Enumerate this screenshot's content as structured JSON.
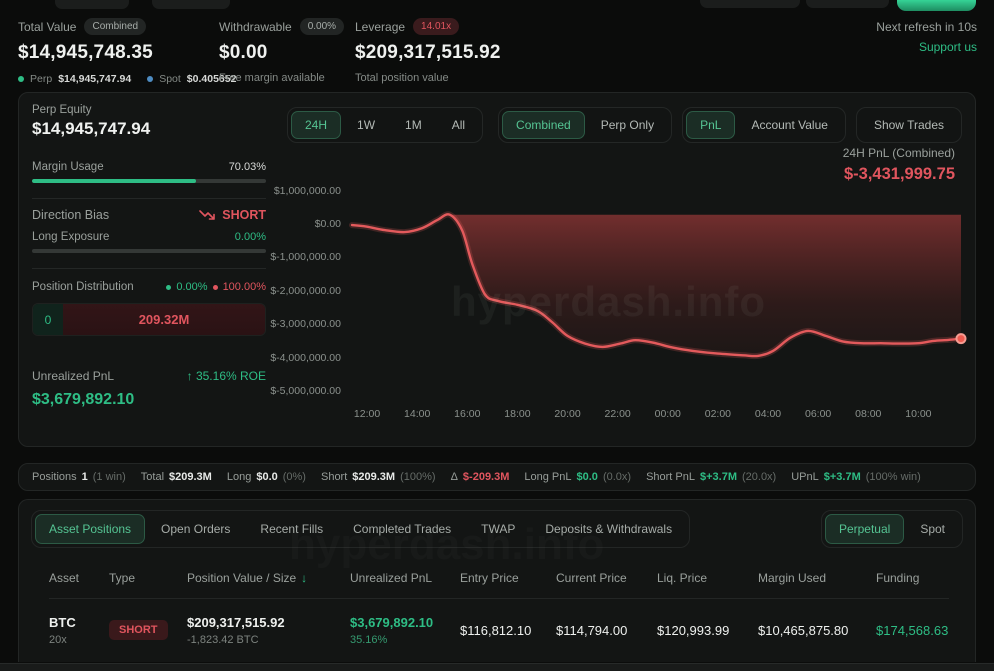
{
  "colors": {
    "background": "#0b0c0b",
    "panel": "#131514",
    "accent_green": "#2ebd85",
    "accent_red": "#e0555e",
    "line_red": "#e35a5c",
    "text_primary": "#eff1ef",
    "text_muted": "#9aa09c",
    "spot_dot_blue": "#4e8cc2"
  },
  "topbar": {
    "total_value": {
      "label": "Total Value",
      "badge": "Combined",
      "value": "$14,945,748.35",
      "perp_label": "Perp",
      "perp_value": "$14,945,747.94",
      "spot_label": "Spot",
      "spot_value": "$0.405652"
    },
    "withdrawable": {
      "label": "Withdrawable",
      "badge": "0.00%",
      "value": "$0.00",
      "sub": "Free margin available"
    },
    "leverage": {
      "label": "Leverage",
      "badge": "14.01x",
      "value": "$209,317,515.92",
      "sub": "Total position value"
    },
    "refresh": "Next refresh in 10s",
    "support": "Support us"
  },
  "stats": {
    "perp_equity_label": "Perp Equity",
    "perp_equity_value": "$14,945,747.94",
    "margin_usage_label": "Margin Usage",
    "margin_usage_value": "70.03%",
    "margin_usage_pct": 70.03,
    "direction_bias_label": "Direction Bias",
    "direction_bias_value": "SHORT",
    "long_exposure_label": "Long Exposure",
    "long_exposure_value": "0.00%",
    "long_exposure_pct": 0,
    "distribution": {
      "label": "Position Distribution",
      "long_pct": "0.00%",
      "short_pct": "100.00%",
      "long_amount": "0",
      "short_amount": "209.32M"
    },
    "unrealized": {
      "label": "Unrealized PnL",
      "roe": "↑ 35.16% ROE",
      "value": "$3,679,892.10"
    }
  },
  "chart_controls": {
    "time_filters": [
      "24H",
      "1W",
      "1M",
      "All"
    ],
    "active_time_filter": "24H",
    "view_toggle": [
      "Combined",
      "Perp Only"
    ],
    "active_view": "Combined",
    "metric_toggle": [
      "PnL",
      "Account Value"
    ],
    "active_metric": "PnL",
    "show_trades": "Show Trades",
    "pnl_label": "24H PnL (Combined)",
    "pnl_value": "$-3,431,999.75"
  },
  "watermark": "hyperdash.info",
  "chart_data": {
    "type": "area-line",
    "title": "24H PnL (Combined)",
    "current_value_label": "$-3,431,999.75",
    "current_value": -3431999.75,
    "ylim": [
      -5450000,
      1140000
    ],
    "y_ticks": [
      {
        "v": 1000000,
        "label": "$1,000,000.00"
      },
      {
        "v": 0,
        "label": "$0.00"
      },
      {
        "v": -1000000,
        "label": "$-1,000,000.00"
      },
      {
        "v": -2000000,
        "label": "$-2,000,000.00"
      },
      {
        "v": -3000000,
        "label": "$-3,000,000.00"
      },
      {
        "v": -4000000,
        "label": "$-4,000,000.00"
      },
      {
        "v": -5000000,
        "label": "$-5,000,000.00"
      }
    ],
    "xlim_hours": [
      11.12,
      36.06
    ],
    "x_ticks": [
      {
        "t": 12,
        "label": "12:00"
      },
      {
        "t": 14,
        "label": "14:00"
      },
      {
        "t": 16,
        "label": "16:00"
      },
      {
        "t": 18,
        "label": "18:00"
      },
      {
        "t": 20,
        "label": "20:00"
      },
      {
        "t": 22,
        "label": "22:00"
      },
      {
        "t": 24,
        "label": "00:00"
      },
      {
        "t": 26,
        "label": "02:00"
      },
      {
        "t": 28,
        "label": "04:00"
      },
      {
        "t": 30,
        "label": "06:00"
      },
      {
        "t": 32,
        "label": "08:00"
      },
      {
        "t": 34,
        "label": "10:00"
      }
    ],
    "points": [
      [
        11.4,
        -30000
      ],
      [
        12.0,
        -80000
      ],
      [
        12.7,
        -180000
      ],
      [
        13.5,
        -240000
      ],
      [
        14.2,
        -120000
      ],
      [
        14.8,
        120000
      ],
      [
        15.3,
        280000
      ],
      [
        15.8,
        -200000
      ],
      [
        16.2,
        -1200000
      ],
      [
        16.7,
        -2100000
      ],
      [
        17.2,
        -2300000
      ],
      [
        18.0,
        -2420000
      ],
      [
        18.8,
        -2600000
      ],
      [
        19.4,
        -2950000
      ],
      [
        20.0,
        -3350000
      ],
      [
        20.7,
        -3580000
      ],
      [
        21.4,
        -3680000
      ],
      [
        22.1,
        -3580000
      ],
      [
        22.7,
        -3480000
      ],
      [
        23.4,
        -3550000
      ],
      [
        24.2,
        -3700000
      ],
      [
        25.0,
        -3800000
      ],
      [
        26.0,
        -3880000
      ],
      [
        27.0,
        -3930000
      ],
      [
        27.6,
        -3950000
      ],
      [
        28.2,
        -3800000
      ],
      [
        28.9,
        -3400000
      ],
      [
        29.6,
        -3200000
      ],
      [
        30.3,
        -3350000
      ],
      [
        31.0,
        -3520000
      ],
      [
        31.7,
        -3570000
      ],
      [
        32.5,
        -3570000
      ],
      [
        33.3,
        -3580000
      ],
      [
        34.0,
        -3570000
      ],
      [
        34.6,
        -3500000
      ],
      [
        35.2,
        -3470000
      ],
      [
        35.7,
        -3430000
      ]
    ],
    "grid": false,
    "legend": "none",
    "marker": "end-dot"
  },
  "positions_summary": {
    "items": [
      {
        "label": "Positions",
        "value": "1",
        "extra": "(1 win)"
      },
      {
        "label": "Total",
        "value": "$209.3M",
        "extra": ""
      },
      {
        "label": "Long",
        "value": "$0.0",
        "extra": "(0%)"
      },
      {
        "label": "Short",
        "value": "$209.3M",
        "extra": "(100%)"
      },
      {
        "label": "Δ",
        "value": "$-209.3M",
        "extra": ""
      },
      {
        "label": "Long PnL",
        "value": "$0.0",
        "extra": "(0.0x)"
      },
      {
        "label": "Short PnL",
        "value": "$+3.7M",
        "extra": "(20.0x)"
      },
      {
        "label": "UPnL",
        "value": "$+3.7M",
        "extra": "(100% win)"
      }
    ]
  },
  "bottom": {
    "tabs": [
      "Asset Positions",
      "Open Orders",
      "Recent Fills",
      "Completed Trades",
      "TWAP",
      "Deposits & Withdrawals"
    ],
    "active_tab": "Asset Positions",
    "market_tabs": [
      "Perpetual",
      "Spot"
    ],
    "active_market": "Perpetual",
    "table": {
      "columns": [
        "Asset",
        "Type",
        "Position Value / Size",
        "Unrealized PnL",
        "Entry Price",
        "Current Price",
        "Liq. Price",
        "Margin Used",
        "Funding"
      ],
      "sort_column": "Position Value / Size",
      "sort_icon": "↓",
      "rows": [
        {
          "asset": "BTC",
          "leverage": "20x",
          "type": "SHORT",
          "value": "$209,317,515.92",
          "size": "-1,823.42 BTC",
          "upnl": "$3,679,892.10",
          "roe": "35.16%",
          "entry": "$116,812.10",
          "current": "$114,794.00",
          "liq": "$120,993.99",
          "margin": "$10,465,875.80",
          "funding": "$174,568.63"
        }
      ]
    }
  }
}
